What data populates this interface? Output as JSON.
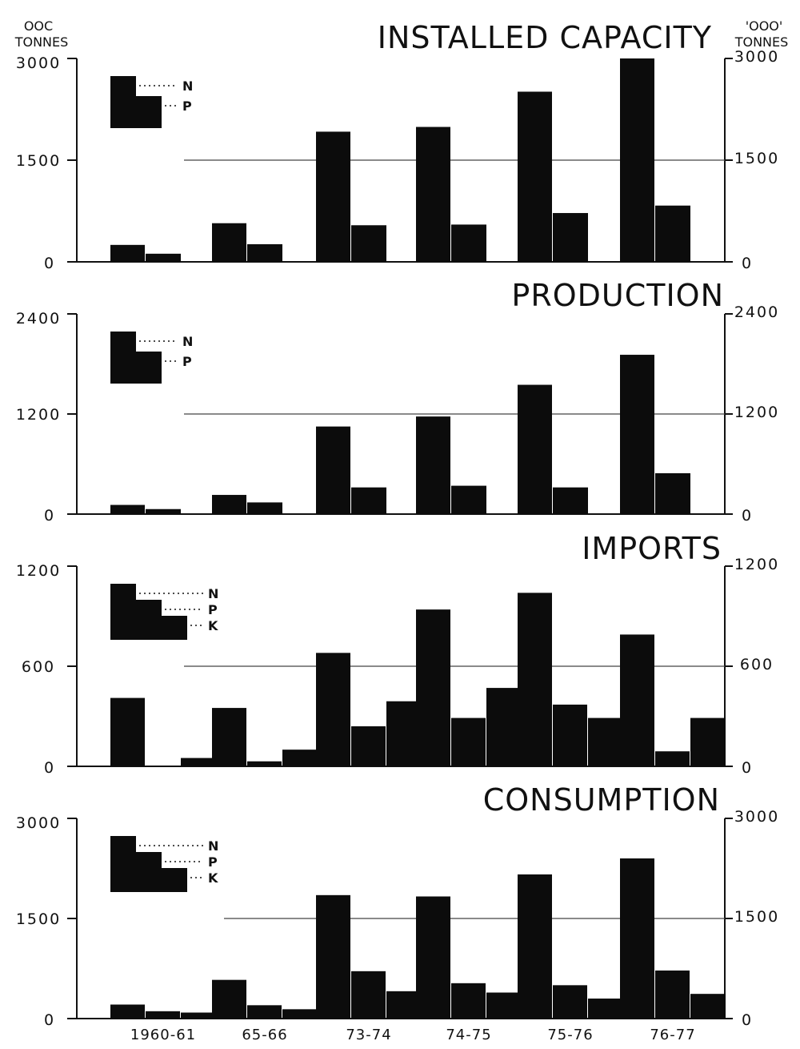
{
  "units": {
    "left_line1": "OOC",
    "left_line2": "TONNES",
    "right_line1": "'OOO'",
    "right_line2": "TONNES"
  },
  "chart_data": [
    {
      "type": "bar",
      "title": "INSTALLED CAPACITY",
      "categories": [
        "1960-61",
        "65-66",
        "73-74",
        "74-75",
        "75-76",
        "76-77"
      ],
      "series": [
        {
          "name": "N",
          "values": [
            250,
            570,
            1920,
            1990,
            2510,
            3000
          ]
        },
        {
          "name": "P",
          "values": [
            120,
            260,
            540,
            550,
            720,
            830
          ]
        }
      ],
      "ylim": [
        0,
        3000
      ],
      "left_ticks": [
        "3000",
        "1500",
        "0"
      ],
      "right_ticks": [
        "3000",
        "1500",
        "0"
      ],
      "gridline_value": 1500,
      "legend_position": "top-left"
    },
    {
      "type": "bar",
      "title": "PRODUCTION",
      "categories": [
        "1960-61",
        "65-66",
        "73-74",
        "74-75",
        "75-76",
        "76-77"
      ],
      "series": [
        {
          "name": "N",
          "values": [
            110,
            230,
            1050,
            1170,
            1550,
            1910
          ]
        },
        {
          "name": "P",
          "values": [
            60,
            140,
            320,
            340,
            320,
            490
          ]
        }
      ],
      "ylim": [
        0,
        2400
      ],
      "left_ticks": [
        "2400",
        "1200",
        "0"
      ],
      "right_ticks": [
        "2400",
        "1200",
        "0"
      ],
      "gridline_value": 1200,
      "legend_position": "top-left"
    },
    {
      "type": "bar",
      "title": "IMPORTS",
      "categories": [
        "1960-61",
        "65-66",
        "73-74",
        "74-75",
        "75-76",
        "76-77"
      ],
      "series": [
        {
          "name": "N",
          "values": [
            410,
            350,
            680,
            940,
            1040,
            790
          ]
        },
        {
          "name": "P",
          "values": [
            0,
            30,
            240,
            290,
            370,
            90
          ]
        },
        {
          "name": "K",
          "values": [
            50,
            100,
            390,
            470,
            290,
            290
          ]
        }
      ],
      "ylim": [
        0,
        1200
      ],
      "left_ticks": [
        "1200",
        "600",
        "0"
      ],
      "right_ticks": [
        "1200",
        "600",
        "0"
      ],
      "gridline_value": 600,
      "legend_position": "top-left"
    },
    {
      "type": "bar",
      "title": "CONSUMPTION",
      "categories": [
        "1960-61",
        "65-66",
        "73-74",
        "74-75",
        "75-76",
        "76-77"
      ],
      "series": [
        {
          "name": "N",
          "values": [
            210,
            580,
            1850,
            1830,
            2160,
            2400
          ]
        },
        {
          "name": "P",
          "values": [
            110,
            200,
            710,
            530,
            500,
            720
          ]
        },
        {
          "name": "K",
          "values": [
            90,
            140,
            410,
            390,
            300,
            370
          ]
        }
      ],
      "ylim": [
        0,
        3000
      ],
      "left_ticks": [
        "3000",
        "1500",
        "0"
      ],
      "right_ticks": [
        "3000",
        "1500",
        "0"
      ],
      "gridline_value": 1500,
      "legend_position": "top-left"
    }
  ],
  "colors": {
    "bar": "#0c0c0c",
    "axis": "#111111",
    "grid": "#444444",
    "background": "#ffffff"
  }
}
